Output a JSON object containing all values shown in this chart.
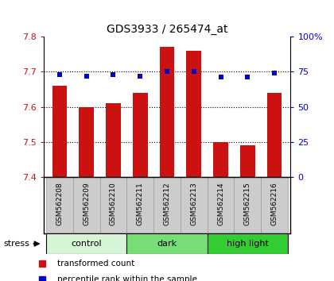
{
  "title": "GDS3933 / 265474_at",
  "samples": [
    "GSM562208",
    "GSM562209",
    "GSM562210",
    "GSM562211",
    "GSM562212",
    "GSM562213",
    "GSM562214",
    "GSM562215",
    "GSM562216"
  ],
  "red_values": [
    7.66,
    7.6,
    7.61,
    7.64,
    7.77,
    7.76,
    7.5,
    7.49,
    7.64
  ],
  "blue_values": [
    73,
    72,
    73,
    72,
    75,
    75,
    71,
    71,
    74
  ],
  "ylim_left": [
    7.4,
    7.8
  ],
  "ylim_right": [
    0,
    100
  ],
  "yticks_left": [
    7.4,
    7.5,
    7.6,
    7.7,
    7.8
  ],
  "yticks_right": [
    0,
    25,
    50,
    75,
    100
  ],
  "groups": [
    {
      "label": "control",
      "start": 0,
      "end": 3,
      "color": "#d6f5d6"
    },
    {
      "label": "dark",
      "start": 3,
      "end": 6,
      "color": "#77dd77"
    },
    {
      "label": "high light",
      "start": 6,
      "end": 9,
      "color": "#33cc33"
    }
  ],
  "stress_label": "stress",
  "bar_color": "#cc1111",
  "dot_color": "#0000cc",
  "bar_width": 0.55,
  "background_plot": "#ffffff",
  "tick_label_color_left": "#cc1111",
  "tick_label_color_right": "#0000cc",
  "grid_color": "#000000",
  "legend_red": "transformed count",
  "legend_blue": "percentile rank within the sample",
  "sample_bg_color": "#cccccc"
}
